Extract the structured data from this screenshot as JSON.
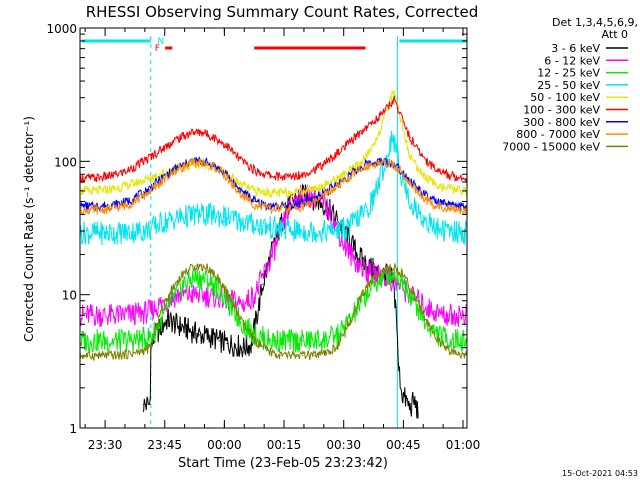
{
  "chart_data": {
    "type": "line",
    "title": "RHESSI Observing Summary Count Rates, Corrected",
    "xlabel": "Start Time (23-Feb-05 23:23:42)",
    "ylabel": "Corrected Count Rate (s⁻¹ detector⁻¹)",
    "yscale": "log",
    "ylim": [
      1,
      1000
    ],
    "xlim_minutes": [
      0,
      97.3
    ],
    "x_ticks": [
      {
        "label": "23:30",
        "t": 6.3
      },
      {
        "label": "23:45",
        "t": 21.3
      },
      {
        "label": "00:00",
        "t": 36.3
      },
      {
        "label": "00:15",
        "t": 51.3
      },
      {
        "label": "00:30",
        "t": 66.3
      },
      {
        "label": "00:45",
        "t": 81.3
      },
      {
        "label": "01:00",
        "t": 96.3
      }
    ],
    "y_ticks": [
      {
        "label": "1",
        "v": 1
      },
      {
        "label": "10",
        "v": 10
      },
      {
        "label": "100",
        "v": 100
      },
      {
        "label": "1000",
        "v": 1000
      }
    ],
    "legend_header": [
      "Det 1,3,4,5,6,9,",
      "Att 0"
    ],
    "legend_placement": "right",
    "flags": {
      "labels": [
        {
          "text": "N",
          "color": "#00e5ee",
          "t": 19.5
        },
        {
          "text": "F",
          "color": "#ff0000",
          "t": 18.8
        }
      ],
      "night_bars": [
        [
          0,
          17.8
        ],
        [
          79.8,
          97.3
        ]
      ],
      "flare_bars": [
        [
          21.4,
          23.2
        ],
        [
          43.8,
          71.8
        ]
      ],
      "night_boundaries": [
        0,
        17.8,
        79.8,
        97.3
      ]
    },
    "series": [
      {
        "name": "3 - 6 keV",
        "color": "#000000",
        "t": [
          16,
          17.6,
          17.8,
          19,
          21,
          22,
          24,
          27,
          30,
          33,
          35,
          37,
          39,
          41,
          43,
          44.5,
          46,
          48,
          50,
          52,
          54,
          55.5,
          57,
          59,
          61,
          63,
          65,
          67,
          69,
          71,
          73,
          75,
          77,
          78.5,
          79.5,
          80,
          81,
          82,
          83,
          84,
          85
        ],
        "values": [
          1.5,
          1.5,
          4,
          5,
          6,
          6.5,
          6,
          5.5,
          5,
          4.8,
          4.5,
          4.3,
          4.2,
          4,
          4.2,
          7,
          12,
          20,
          30,
          45,
          52,
          55,
          55,
          52,
          48,
          42,
          35,
          28,
          22,
          18,
          16,
          14.5,
          14,
          13,
          8,
          3,
          1.8,
          1.6,
          1.4,
          1.6,
          1.3
        ]
      },
      {
        "name": "6 - 12 keV",
        "color": "#ff00ff",
        "t": [
          0,
          5,
          10,
          15,
          17.8,
          20,
          25,
          30,
          35,
          38,
          41,
          44,
          47,
          50,
          52,
          54,
          56,
          58,
          60,
          62,
          64,
          66,
          68,
          70,
          72,
          74,
          76,
          78,
          80,
          83,
          86,
          89,
          92,
          95,
          97.3
        ],
        "values": [
          7,
          7,
          7,
          7.2,
          7.5,
          8.5,
          10,
          10,
          9.5,
          9,
          8.5,
          10,
          16,
          26,
          40,
          52,
          55,
          55,
          52,
          45,
          35,
          25,
          20,
          17,
          15,
          14,
          14,
          13,
          12,
          10,
          8.5,
          7.5,
          7,
          7,
          7
        ]
      },
      {
        "name": "12 - 25 keV",
        "color": "#00ee00",
        "t": [
          0,
          5,
          10,
          15,
          17.8,
          20,
          23,
          26,
          29,
          32,
          35,
          38,
          41,
          44,
          47,
          50,
          53,
          56,
          59,
          62,
          65,
          68,
          71,
          74,
          77,
          79,
          81,
          84,
          87,
          90,
          93,
          97.3
        ],
        "values": [
          4.5,
          4.5,
          4.5,
          4.6,
          4.8,
          6,
          9,
          12,
          13.5,
          13,
          11,
          8,
          6,
          5,
          4.6,
          4.5,
          4.5,
          4.5,
          4.5,
          4.6,
          5,
          6.5,
          9,
          12,
          14,
          14.5,
          13,
          9,
          6,
          5,
          4.6,
          4.5
        ]
      },
      {
        "name": "25 - 50 keV",
        "color": "#00e5ee",
        "t": [
          0,
          5,
          10,
          15,
          17.8,
          20,
          25,
          30,
          35,
          40,
          45,
          50,
          55,
          60,
          63,
          66,
          68,
          70,
          72,
          74,
          76,
          77.5,
          78.5,
          79.5,
          81,
          83,
          86,
          89,
          92,
          97.3
        ],
        "values": [
          29,
          29,
          29,
          30,
          31,
          34,
          38,
          40,
          39,
          36,
          33,
          31,
          30,
          30,
          30,
          31,
          33,
          38,
          42,
          55,
          85,
          115,
          160,
          120,
          75,
          50,
          38,
          32,
          30,
          29
        ]
      },
      {
        "name": "50 - 100 keV",
        "color": "#e5e500",
        "t": [
          0,
          4,
          8,
          12,
          16,
          20,
          24,
          28,
          31,
          34,
          37,
          40,
          44,
          48,
          52,
          56,
          60,
          64,
          68,
          71,
          73,
          75,
          76.5,
          78,
          79,
          80,
          81.5,
          83,
          86,
          89,
          93,
          97.3
        ],
        "values": [
          60,
          60,
          62,
          66,
          72,
          80,
          88,
          95,
          95,
          90,
          80,
          68,
          60,
          58,
          58,
          60,
          64,
          72,
          85,
          100,
          120,
          160,
          210,
          300,
          340,
          250,
          160,
          110,
          80,
          68,
          62,
          60
        ]
      },
      {
        "name": "100 - 300 keV",
        "color": "#ff0000",
        "t": [
          0,
          4,
          8,
          12,
          16,
          20,
          24,
          28,
          31,
          34,
          37,
          40,
          44,
          48,
          52,
          56,
          60,
          64,
          68,
          71,
          74,
          76,
          78,
          79,
          80,
          81.5,
          83,
          86,
          89,
          93,
          97.3
        ],
        "values": [
          75,
          75,
          78,
          85,
          100,
          120,
          145,
          165,
          165,
          150,
          130,
          105,
          85,
          78,
          76,
          80,
          90,
          110,
          140,
          170,
          200,
          230,
          270,
          290,
          250,
          190,
          150,
          110,
          90,
          78,
          75
        ]
      },
      {
        "name": "300 - 800 keV",
        "color": "#0000ff",
        "t": [
          0,
          4,
          8,
          12,
          16,
          20,
          24,
          28,
          31,
          34,
          37,
          40,
          44,
          48,
          52,
          56,
          60,
          64,
          68,
          72,
          75,
          78,
          80,
          82,
          85,
          88,
          91,
          94,
          97.3
        ],
        "values": [
          46,
          46,
          47,
          50,
          58,
          72,
          88,
          100,
          100,
          92,
          78,
          62,
          50,
          46,
          46,
          48,
          55,
          65,
          80,
          95,
          100,
          98,
          90,
          78,
          62,
          52,
          48,
          46,
          46
        ]
      },
      {
        "name": "800 - 7000 keV",
        "color": "#ff8c00",
        "t": [
          0,
          4,
          8,
          12,
          16,
          20,
          24,
          28,
          31,
          34,
          37,
          40,
          44,
          48,
          52,
          56,
          60,
          64,
          68,
          72,
          75,
          78,
          80,
          82,
          85,
          88,
          91,
          94,
          97.3
        ],
        "values": [
          43,
          43,
          44,
          47,
          55,
          68,
          85,
          97,
          98,
          90,
          75,
          58,
          47,
          44,
          44,
          46,
          52,
          62,
          77,
          92,
          98,
          96,
          88,
          75,
          59,
          49,
          45,
          43,
          43
        ]
      },
      {
        "name": "7000 - 15000 keV",
        "color": "#808000",
        "t": [
          0,
          5,
          10,
          15,
          17.8,
          20,
          23,
          26,
          29,
          32,
          35,
          38,
          41,
          44,
          47,
          50,
          53,
          56,
          59,
          62,
          65,
          68,
          71,
          74,
          77,
          79,
          81,
          84,
          87,
          90,
          93,
          97.3
        ],
        "values": [
          3.5,
          3.5,
          3.5,
          3.7,
          4,
          7,
          11,
          14.5,
          16.5,
          16,
          13,
          9,
          6,
          4.5,
          3.8,
          3.5,
          3.5,
          3.5,
          3.5,
          3.6,
          4.2,
          6.5,
          10,
          13.5,
          15.5,
          16,
          14.5,
          10,
          6.5,
          4.5,
          3.7,
          3.5
        ]
      }
    ]
  },
  "footer": {
    "timestamp": "15-Oct-2021 04:53"
  }
}
